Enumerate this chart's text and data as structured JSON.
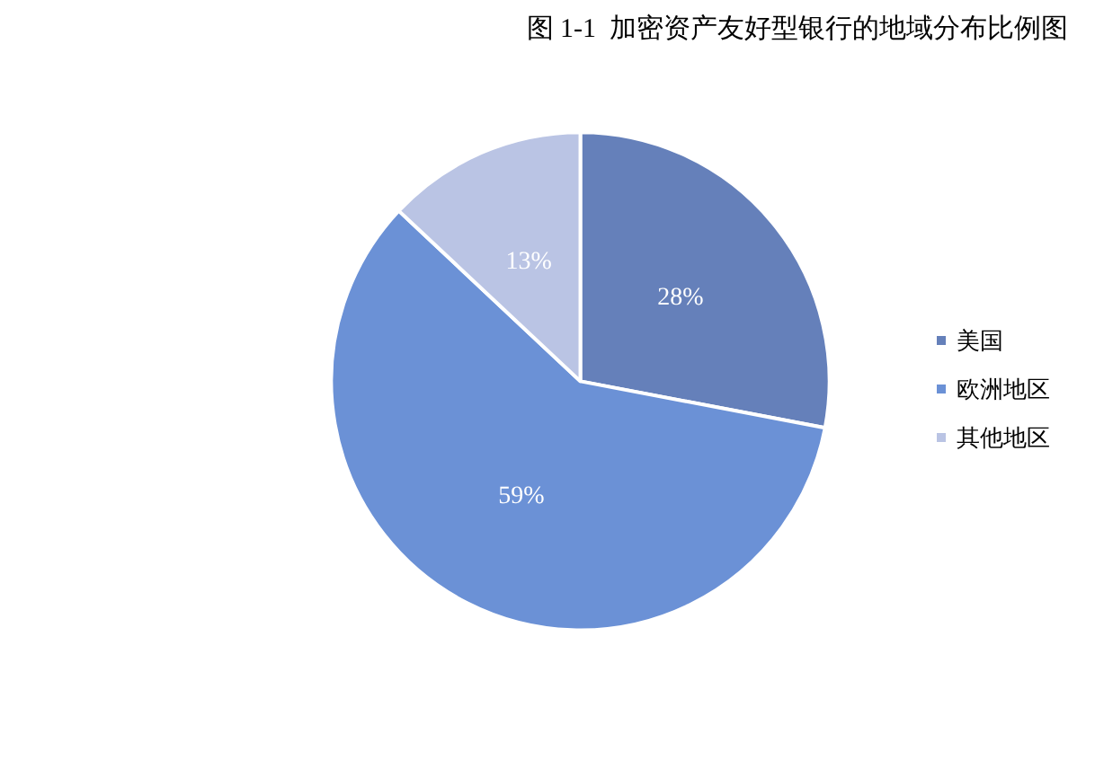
{
  "chart_data": {
    "type": "pie",
    "title": "图 1-1  加密资产友好型银行的地域分布比例图",
    "categories": [
      "美国",
      "欧洲地区",
      "其他地区"
    ],
    "values": [
      28,
      59,
      13
    ],
    "colors": [
      "#6580ba",
      "#6b91d6",
      "#bac4e4"
    ],
    "value_labels": [
      "28%",
      "59%",
      "13%"
    ],
    "legend": "right"
  }
}
